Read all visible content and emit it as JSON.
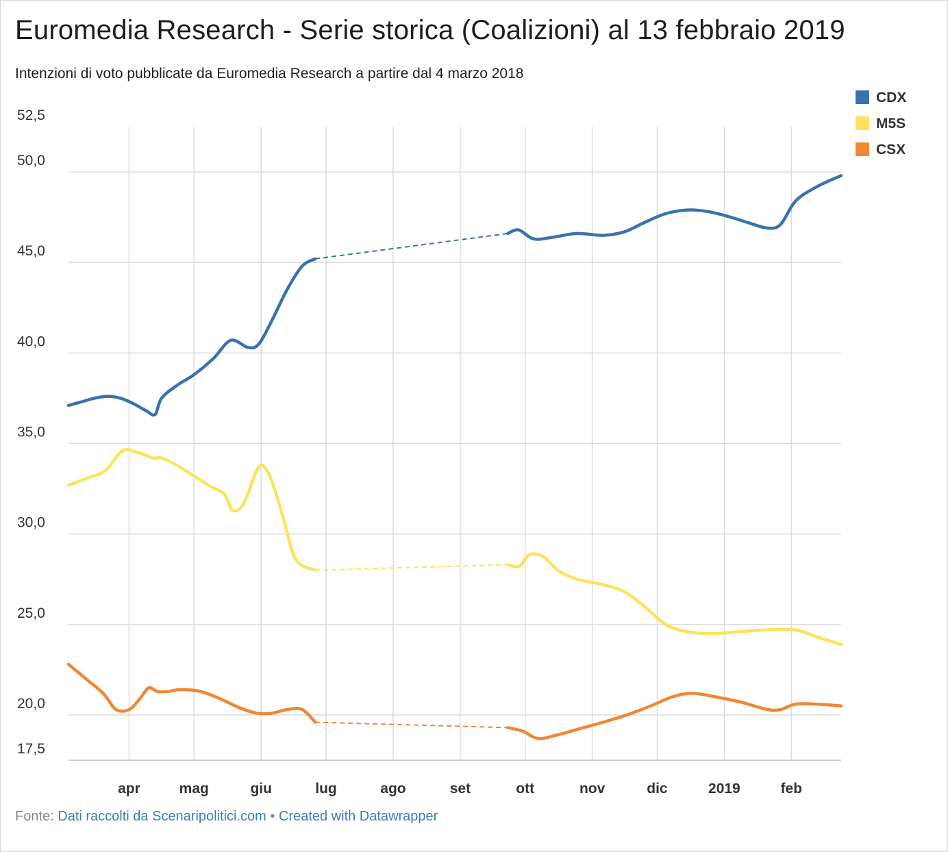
{
  "title": "Euromedia Research - Serie storica (Coalizioni) al 13 febbraio 2019",
  "subtitle": "Intenzioni di voto pubblicate da Euromedia Research a partire dal 4 marzo 2018",
  "footer": {
    "source_label": "Fonte:",
    "source_link": "Dati raccolti da Scenaripolitici.com",
    "separator": "•",
    "credit": "Created with Datawrapper"
  },
  "chart_data": {
    "type": "line",
    "y_ticks": [
      "17,5",
      "20,0",
      "25,0",
      "30,0",
      "35,0",
      "40,0",
      "45,0",
      "50,0",
      "52,5"
    ],
    "y_tick_values": [
      17.5,
      20,
      25,
      30,
      35,
      40,
      45,
      50,
      52.5
    ],
    "ylim": [
      17.5,
      52.5
    ],
    "xlim": [
      "2018-03-04",
      "2019-02-24"
    ],
    "x_ticks": [
      {
        "date": "2018-04-01",
        "label": "apr"
      },
      {
        "date": "2018-05-01",
        "label": "mag"
      },
      {
        "date": "2018-06-01",
        "label": "giu"
      },
      {
        "date": "2018-07-01",
        "label": "lug"
      },
      {
        "date": "2018-08-01",
        "label": "ago"
      },
      {
        "date": "2018-09-01",
        "label": "set"
      },
      {
        "date": "2018-10-01",
        "label": "ott"
      },
      {
        "date": "2018-11-01",
        "label": "nov"
      },
      {
        "date": "2018-12-01",
        "label": "dic"
      },
      {
        "date": "2019-01-01",
        "label": "2019"
      },
      {
        "date": "2019-02-01",
        "label": "feb"
      }
    ],
    "grid": true,
    "legend_position": "top-right",
    "gap": {
      "from": "2018-06-26",
      "to": "2018-09-23",
      "style": "dashed"
    },
    "series": [
      {
        "name": "CDX",
        "color": "#3a72ad",
        "points": [
          [
            "2018-03-04",
            37.1
          ],
          [
            "2018-03-10",
            37.3
          ],
          [
            "2018-03-16",
            37.5
          ],
          [
            "2018-03-22",
            37.6
          ],
          [
            "2018-03-28",
            37.5
          ],
          [
            "2018-04-03",
            37.2
          ],
          [
            "2018-04-09",
            36.8
          ],
          [
            "2018-04-13",
            36.6
          ],
          [
            "2018-04-16",
            37.5
          ],
          [
            "2018-04-23",
            38.2
          ],
          [
            "2018-05-01",
            38.8
          ],
          [
            "2018-05-10",
            39.7
          ],
          [
            "2018-05-18",
            40.7
          ],
          [
            "2018-05-26",
            40.3
          ],
          [
            "2018-05-31",
            40.5
          ],
          [
            "2018-06-06",
            41.8
          ],
          [
            "2018-06-13",
            43.5
          ],
          [
            "2018-06-20",
            44.8
          ],
          [
            "2018-06-26",
            45.2
          ],
          [
            "2018-09-23",
            46.6
          ],
          [
            "2018-09-28",
            46.8
          ],
          [
            "2018-10-05",
            46.3
          ],
          [
            "2018-10-14",
            46.4
          ],
          [
            "2018-10-25",
            46.6
          ],
          [
            "2018-11-06",
            46.5
          ],
          [
            "2018-11-16",
            46.7
          ],
          [
            "2018-11-25",
            47.2
          ],
          [
            "2018-12-05",
            47.7
          ],
          [
            "2018-12-15",
            47.9
          ],
          [
            "2018-12-25",
            47.8
          ],
          [
            "2019-01-04",
            47.5
          ],
          [
            "2019-01-12",
            47.2
          ],
          [
            "2019-01-21",
            46.9
          ],
          [
            "2019-01-27",
            47.1
          ],
          [
            "2019-02-03",
            48.4
          ],
          [
            "2019-02-13",
            49.2
          ],
          [
            "2019-02-24",
            49.8
          ]
        ]
      },
      {
        "name": "M5S",
        "color": "#fbe45c",
        "points": [
          [
            "2018-03-04",
            32.7
          ],
          [
            "2018-03-13",
            33.1
          ],
          [
            "2018-03-21",
            33.5
          ],
          [
            "2018-03-29",
            34.6
          ],
          [
            "2018-04-05",
            34.5
          ],
          [
            "2018-04-12",
            34.2
          ],
          [
            "2018-04-16",
            34.2
          ],
          [
            "2018-04-23",
            33.8
          ],
          [
            "2018-05-01",
            33.2
          ],
          [
            "2018-05-09",
            32.6
          ],
          [
            "2018-05-15",
            32.2
          ],
          [
            "2018-05-19",
            31.3
          ],
          [
            "2018-05-24",
            31.7
          ],
          [
            "2018-05-31",
            33.7
          ],
          [
            "2018-06-05",
            33.2
          ],
          [
            "2018-06-11",
            31.0
          ],
          [
            "2018-06-17",
            28.6
          ],
          [
            "2018-06-26",
            28.0
          ],
          [
            "2018-09-23",
            28.3
          ],
          [
            "2018-09-28",
            28.2
          ],
          [
            "2018-10-01",
            28.6
          ],
          [
            "2018-10-04",
            28.9
          ],
          [
            "2018-10-10",
            28.7
          ],
          [
            "2018-10-16",
            28.0
          ],
          [
            "2018-10-25",
            27.5
          ],
          [
            "2018-11-06",
            27.2
          ],
          [
            "2018-11-16",
            26.8
          ],
          [
            "2018-11-25",
            26.0
          ],
          [
            "2018-12-05",
            25.0
          ],
          [
            "2018-12-15",
            24.6
          ],
          [
            "2018-12-28",
            24.5
          ],
          [
            "2019-01-08",
            24.6
          ],
          [
            "2019-01-20",
            24.7
          ],
          [
            "2019-02-03",
            24.7
          ],
          [
            "2019-02-13",
            24.3
          ],
          [
            "2019-02-24",
            23.9
          ]
        ]
      },
      {
        "name": "CSX",
        "color": "#f08735",
        "points": [
          [
            "2018-03-04",
            22.8
          ],
          [
            "2018-03-12",
            22.0
          ],
          [
            "2018-03-20",
            21.2
          ],
          [
            "2018-03-26",
            20.3
          ],
          [
            "2018-04-01",
            20.3
          ],
          [
            "2018-04-06",
            20.9
          ],
          [
            "2018-04-10",
            21.5
          ],
          [
            "2018-04-14",
            21.3
          ],
          [
            "2018-04-19",
            21.3
          ],
          [
            "2018-04-25",
            21.4
          ],
          [
            "2018-05-04",
            21.3
          ],
          [
            "2018-05-13",
            20.9
          ],
          [
            "2018-05-22",
            20.4
          ],
          [
            "2018-05-30",
            20.1
          ],
          [
            "2018-06-06",
            20.1
          ],
          [
            "2018-06-13",
            20.3
          ],
          [
            "2018-06-20",
            20.3
          ],
          [
            "2018-06-26",
            19.6
          ],
          [
            "2018-09-23",
            19.3
          ],
          [
            "2018-09-30",
            19.1
          ],
          [
            "2018-10-07",
            18.7
          ],
          [
            "2018-10-16",
            18.9
          ],
          [
            "2018-10-25",
            19.2
          ],
          [
            "2018-11-06",
            19.6
          ],
          [
            "2018-11-17",
            20.0
          ],
          [
            "2018-11-28",
            20.5
          ],
          [
            "2018-12-08",
            21.0
          ],
          [
            "2018-12-17",
            21.2
          ],
          [
            "2018-12-28",
            21.0
          ],
          [
            "2019-01-09",
            20.7
          ],
          [
            "2019-01-21",
            20.3
          ],
          [
            "2019-01-27",
            20.3
          ],
          [
            "2019-02-03",
            20.6
          ],
          [
            "2019-02-13",
            20.6
          ],
          [
            "2019-02-24",
            20.5
          ]
        ]
      }
    ]
  }
}
